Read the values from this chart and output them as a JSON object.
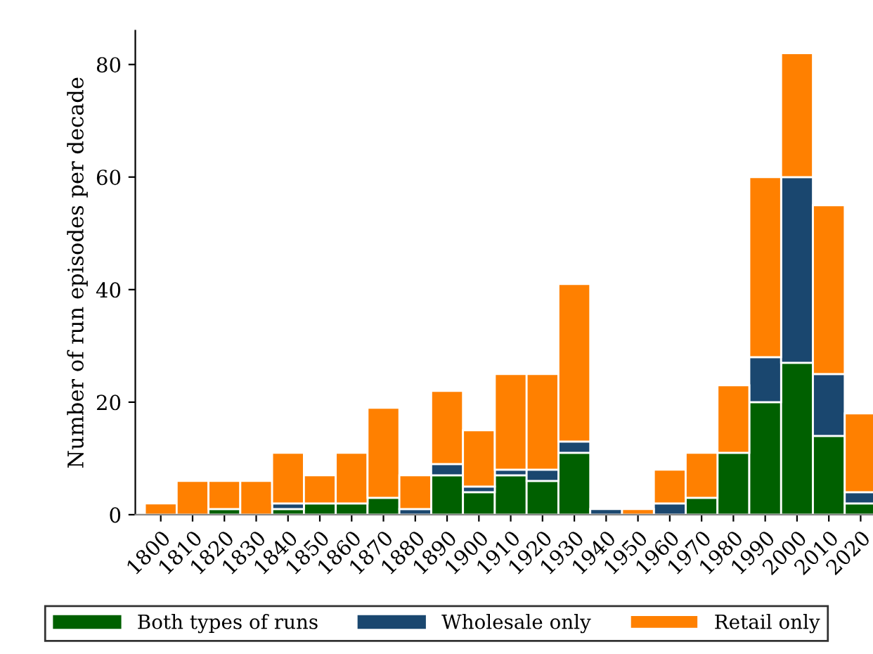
{
  "chart_data": {
    "type": "bar",
    "stacked": true,
    "ylabel": "Number of run episodes per decade",
    "categories": [
      "1800",
      "1810",
      "1820",
      "1830",
      "1840",
      "1850",
      "1860",
      "1870",
      "1880",
      "1890",
      "1900",
      "1910",
      "1920",
      "1930",
      "1940",
      "1950",
      "1960",
      "1970",
      "1980",
      "1990",
      "2000",
      "2010",
      "2020"
    ],
    "series": [
      {
        "name": "Both types of runs",
        "color": "#006000",
        "values": [
          0,
          0,
          1,
          0,
          1,
          2,
          2,
          3,
          0,
          7,
          4,
          7,
          6,
          11,
          0,
          0,
          0,
          3,
          11,
          20,
          27,
          14,
          2
        ]
      },
      {
        "name": "Wholesale only",
        "color": "#1a476f",
        "values": [
          0,
          0,
          0,
          0,
          1,
          0,
          0,
          0,
          1,
          2,
          1,
          1,
          2,
          2,
          1,
          0,
          2,
          0,
          0,
          8,
          33,
          11,
          2
        ]
      },
      {
        "name": "Retail only",
        "color": "#ff8000",
        "values": [
          2,
          6,
          5,
          6,
          9,
          5,
          9,
          16,
          6,
          13,
          10,
          17,
          17,
          28,
          0,
          1,
          6,
          8,
          12,
          32,
          22,
          30,
          14
        ]
      }
    ],
    "ylim": [
      0,
      86
    ],
    "yticks": [
      0,
      20,
      40,
      60,
      80
    ],
    "grid": false,
    "legend": "bottom"
  }
}
